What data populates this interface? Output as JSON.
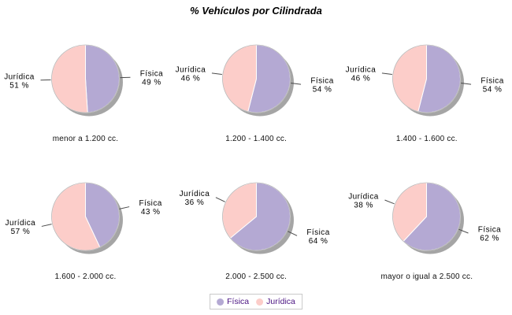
{
  "title": "% Vehículos por Cilindrada",
  "value_suffix": " %",
  "colors": {
    "fisica": "#b4a9d3",
    "juridica": "#fccdc9",
    "shadow": "#9b9b9b",
    "rim": "rgba(0,0,0,0.28)",
    "divider": "#ffffff",
    "leader_line": "#4a4a4a",
    "legend_text": "#4b1482",
    "legend_border": "#c9c9c9"
  },
  "legend": {
    "items": [
      {
        "label": "Física",
        "color_key": "fisica"
      },
      {
        "label": "Jurídica",
        "color_key": "juridica"
      }
    ]
  },
  "chart_data": [
    {
      "type": "pie",
      "title": "menor a 1.200 cc.",
      "labels": [
        "Física",
        "Jurídica"
      ],
      "values": [
        49,
        51
      ],
      "colors_keys": [
        "fisica",
        "juridica"
      ],
      "legend_position": "bottom"
    },
    {
      "type": "pie",
      "title": "1.200 - 1.400 cc.",
      "labels": [
        "Física",
        "Jurídica"
      ],
      "values": [
        54,
        46
      ],
      "colors_keys": [
        "fisica",
        "juridica"
      ],
      "legend_position": "bottom"
    },
    {
      "type": "pie",
      "title": "1.400 - 1.600 cc.",
      "labels": [
        "Física",
        "Jurídica"
      ],
      "values": [
        54,
        46
      ],
      "colors_keys": [
        "fisica",
        "juridica"
      ],
      "legend_position": "bottom"
    },
    {
      "type": "pie",
      "title": "1.600 - 2.000 cc.",
      "labels": [
        "Física",
        "Jurídica"
      ],
      "values": [
        43,
        57
      ],
      "colors_keys": [
        "fisica",
        "juridica"
      ],
      "legend_position": "bottom"
    },
    {
      "type": "pie",
      "title": "2.000 - 2.500 cc.",
      "labels": [
        "Física",
        "Jurídica"
      ],
      "values": [
        64,
        36
      ],
      "colors_keys": [
        "fisica",
        "juridica"
      ],
      "legend_position": "bottom"
    },
    {
      "type": "pie",
      "title": "mayor o igual a 2.500 cc.",
      "labels": [
        "Física",
        "Jurídica"
      ],
      "values": [
        62,
        38
      ],
      "colors_keys": [
        "fisica",
        "juridica"
      ],
      "legend_position": "bottom"
    }
  ]
}
